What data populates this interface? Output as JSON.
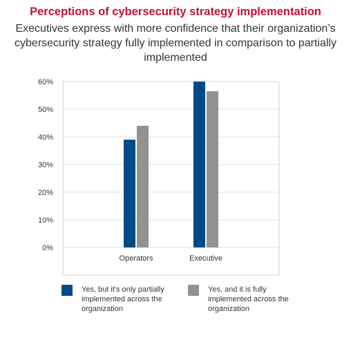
{
  "title": "Perceptions of cybersecurity strategy implementation",
  "subtitle": "Executives express with more confidence that their organization’s cybersecurity strategy fully implemented in comparison to partially implemented",
  "legend": [
    {
      "label": "Yes, but it's only partially implemented across the organization",
      "color": "#004a87"
    },
    {
      "label": "Yes, and it is fully implemented across the organization",
      "color": "#929292"
    }
  ],
  "chart_data": {
    "type": "bar",
    "title": "Perceptions of cybersecurity strategy implementation",
    "subtitle": "Executives express with more confidence that their organization’s cybersecurity strategy fully implemented in comparison to partially implemented",
    "categories": [
      "Operators",
      "Executive"
    ],
    "series": [
      {
        "name": "Yes, but it's only partially implemented across the organization",
        "values": [
          39,
          60
        ],
        "color": "#004a87"
      },
      {
        "name": "Yes, and it is fully implemented across the organization",
        "values": [
          44,
          56.5
        ],
        "color": "#929292"
      }
    ],
    "yticks": [
      "0%",
      "10%",
      "20%",
      "30%",
      "40%",
      "50%",
      "60%"
    ],
    "ylim": [
      0,
      60
    ],
    "grid": true,
    "legend_position": "bottom"
  }
}
